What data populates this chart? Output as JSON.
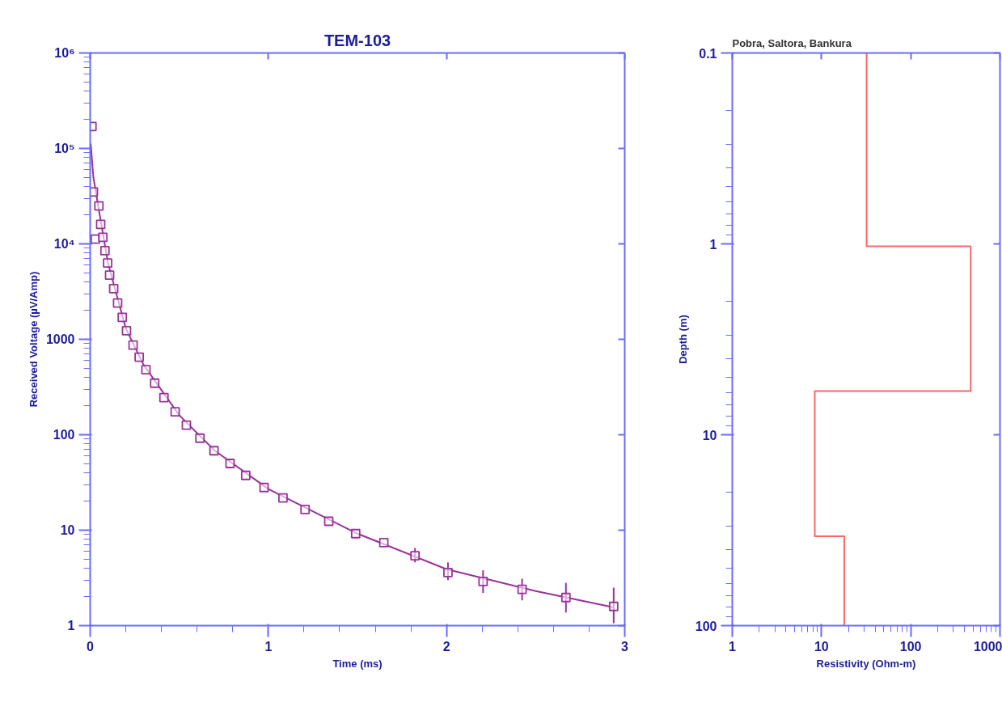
{
  "chart_data": [
    {
      "type": "scatter",
      "title": "TEM-103",
      "xlabel": "Time (ms)",
      "ylabel": "Received Voltage (µV/Amp)",
      "log": "y",
      "grid": false,
      "xlim": [
        0,
        3
      ],
      "xticks": [
        0,
        1,
        2,
        3
      ],
      "ylim": [
        1,
        1000000
      ],
      "yticks": [
        1,
        10,
        100,
        1000,
        {
          "value": 10000,
          "label": "10⁴"
        },
        {
          "value": 100000,
          "label": "10⁵"
        },
        {
          "value": 1000000,
          "label": "10⁶"
        }
      ],
      "series": [
        {
          "marker": "square",
          "color": "#993399",
          "x": [
            0.01,
            0.018,
            0.029,
            0.049,
            0.059,
            0.071,
            0.083,
            0.098,
            0.109,
            0.132,
            0.154,
            0.18,
            0.204,
            0.241,
            0.275,
            0.313,
            0.362,
            0.414,
            0.477,
            0.54,
            0.616,
            0.695,
            0.785,
            0.873,
            0.976,
            1.082,
            1.206,
            1.339,
            1.49,
            1.648,
            1.823,
            2.008,
            2.205,
            2.424,
            2.67,
            2.938
          ],
          "values": [
            170000,
            35000,
            11200,
            25000,
            16000,
            11700,
            8500,
            6300,
            4700,
            3400,
            2400,
            1700,
            1230,
            870,
            650,
            480,
            347,
            245,
            174,
            126,
            92,
            68,
            50,
            37.5,
            28,
            21.8,
            16.5,
            12.4,
            9.2,
            7.4,
            5.4,
            3.6,
            2.9,
            2.4,
            1.97,
            1.59
          ],
          "errors": [
            null,
            null,
            null,
            null,
            null,
            null,
            null,
            null,
            null,
            null,
            null,
            null,
            null,
            null,
            null,
            null,
            null,
            null,
            null,
            null,
            null,
            null,
            null,
            null,
            null,
            null,
            null,
            null,
            null,
            null,
            [
              4.6,
              6.5
            ],
            [
              3.0,
              4.6
            ],
            [
              2.2,
              3.8
            ],
            [
              1.84,
              3.1
            ],
            [
              1.37,
              2.8
            ],
            [
              1.06,
              2.5
            ]
          ]
        },
        {
          "type": "line",
          "color": "#993399",
          "line_style": "solid",
          "x": [
            0.003,
            0.018,
            0.05,
            0.1,
            0.2,
            0.3,
            0.5,
            0.7,
            1.0,
            1.5,
            2.0,
            2.5,
            2.94
          ],
          "values": [
            112000,
            50000,
            22000,
            6300,
            1300,
            540,
            160,
            68,
            27,
            9.2,
            3.9,
            2.3,
            1.55
          ]
        }
      ]
    },
    {
      "type": "line",
      "title": "Pobra, Saltora, Bankura",
      "xlabel": "Resistivity (Ohm-m)",
      "ylabel": "Depth (m)",
      "log": "xy",
      "grid": false,
      "xlim": [
        1,
        1000
      ],
      "xticks": [
        1,
        10,
        100,
        1000
      ],
      "ylim": [
        100,
        0.1
      ],
      "yticks": [
        0.1,
        1,
        10,
        100
      ],
      "series": [
        {
          "color": "#ff6666",
          "line_style": "solid",
          "x": [
            32,
            32,
            470,
            470,
            8.4,
            8.4,
            18,
            18
          ],
          "values": [
            0.1,
            1.03,
            1.03,
            5.9,
            5.9,
            34,
            34,
            100
          ]
        }
      ]
    }
  ]
}
